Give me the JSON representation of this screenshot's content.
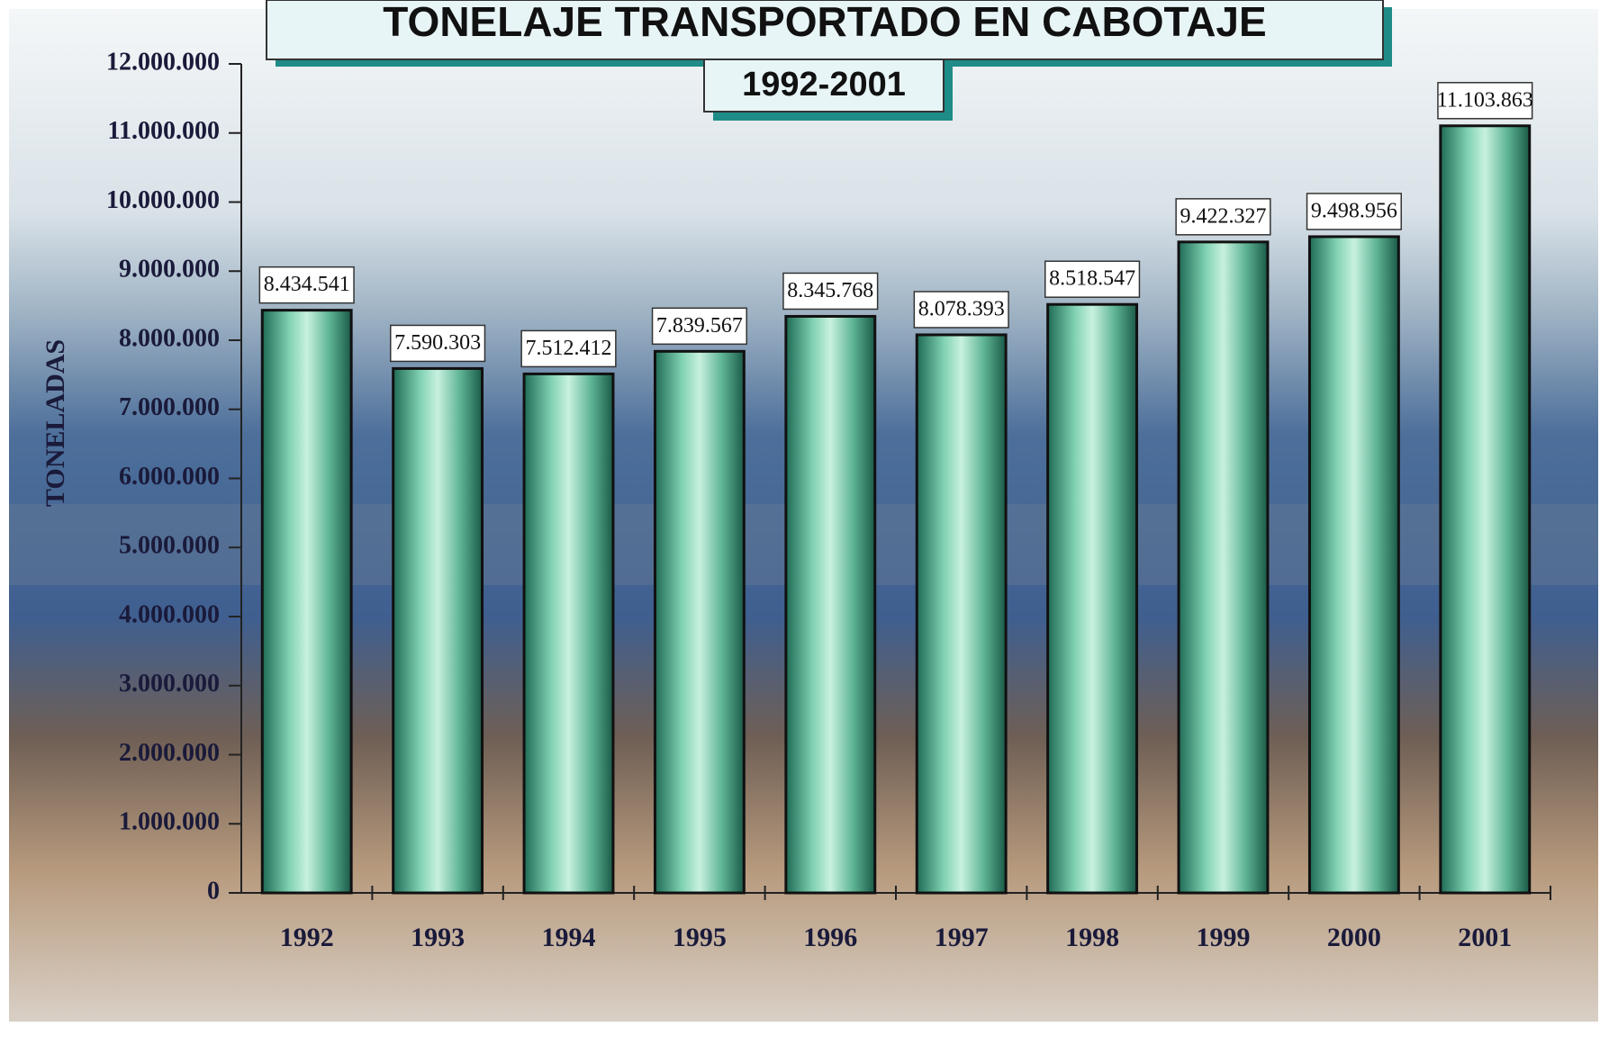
{
  "chart_data": {
    "type": "bar",
    "title": "TONELAJE TRANSPORTADO EN CABOTAJE",
    "subtitle": "1992-2001",
    "y_label": "TONELADAS",
    "categories": [
      "1992",
      "1993",
      "1994",
      "1995",
      "1996",
      "1997",
      "1998",
      "1999",
      "2000",
      "2001"
    ],
    "values": [
      8434541,
      7590303,
      7512412,
      7839567,
      8345768,
      8078393,
      8518547,
      9422327,
      9498956,
      11103863
    ],
    "value_labels": [
      "8.434.541",
      "7.590.303",
      "7.512.412",
      "7.839.567",
      "8.345.768",
      "8.078.393",
      "8.518.547",
      "9.422.327",
      "9.498.956",
      "11.103.863"
    ],
    "color": "#5fb596",
    "ylim": [
      0,
      12000000
    ],
    "yticks": [
      0,
      {
        "value": 1000000,
        "label": "1.000.000"
      },
      {
        "value": 2000000,
        "label": "2.000.000"
      },
      {
        "value": 3000000,
        "label": "3.000.000"
      },
      {
        "value": 4000000,
        "label": "4.000.000"
      },
      {
        "value": 5000000,
        "label": "5.000.000"
      },
      {
        "value": 6000000,
        "label": "6.000.000"
      },
      {
        "value": 7000000,
        "label": "7.000.000"
      },
      {
        "value": 8000000,
        "label": "8.000.000"
      },
      {
        "value": 9000000,
        "label": "9.000.000"
      },
      {
        "value": 10000000,
        "label": "10.000.000"
      },
      {
        "value": 11000000,
        "label": "11.000.000"
      },
      {
        "value": 12000000,
        "label": "12.000.000"
      }
    ],
    "grid": false
  }
}
